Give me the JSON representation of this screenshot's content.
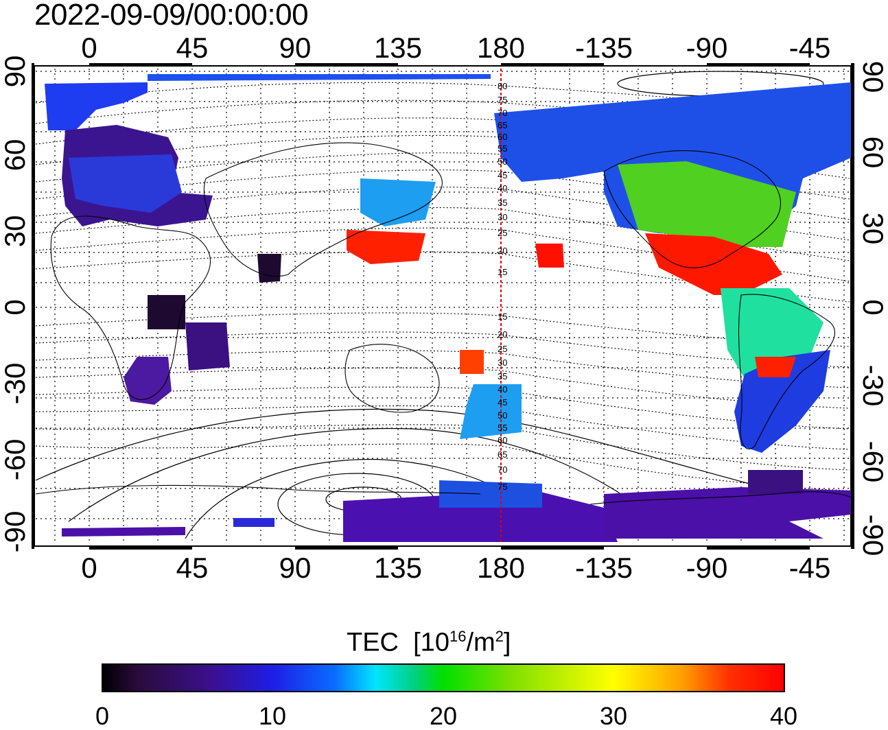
{
  "title": "2022-09-09/00:00:00",
  "axes": {
    "lon_ticks_top": [
      "0",
      "45",
      "90",
      "135",
      "180",
      "-135",
      "-90",
      "-45"
    ],
    "lon_ticks_bottom": [
      "0",
      "45",
      "90",
      "135",
      "180",
      "-135",
      "-90",
      "-45"
    ],
    "lat_ticks_left": [
      "90",
      "60",
      "30",
      "0",
      "-30",
      "-60",
      "-90"
    ],
    "lat_ticks_right": [
      "90",
      "60",
      "30",
      "0",
      "-30",
      "-60",
      "-90"
    ]
  },
  "contour_labels": [
    "80",
    "75",
    "70",
    "65",
    "60",
    "55",
    "50",
    "45",
    "40",
    "35",
    "30",
    "25",
    "20",
    "15",
    "15",
    "20",
    "25",
    "30",
    "35",
    "40",
    "45",
    "50",
    "55",
    "60",
    "65",
    "70",
    "75"
  ],
  "colorbar": {
    "title": "TEC",
    "unit_base": "[10",
    "unit_exp1": "16",
    "unit_mid": "/m",
    "unit_exp2": "2",
    "unit_end": "]",
    "labels": [
      "0",
      "10",
      "20",
      "30",
      "40"
    ]
  },
  "colors": {
    "low": "#000000",
    "purple": "#3b0f8f",
    "blue": "#1e1ee6",
    "cyan": "#00e5ff",
    "green": "#00e000",
    "yellow": "#ffff00",
    "red": "#ff0000"
  }
}
